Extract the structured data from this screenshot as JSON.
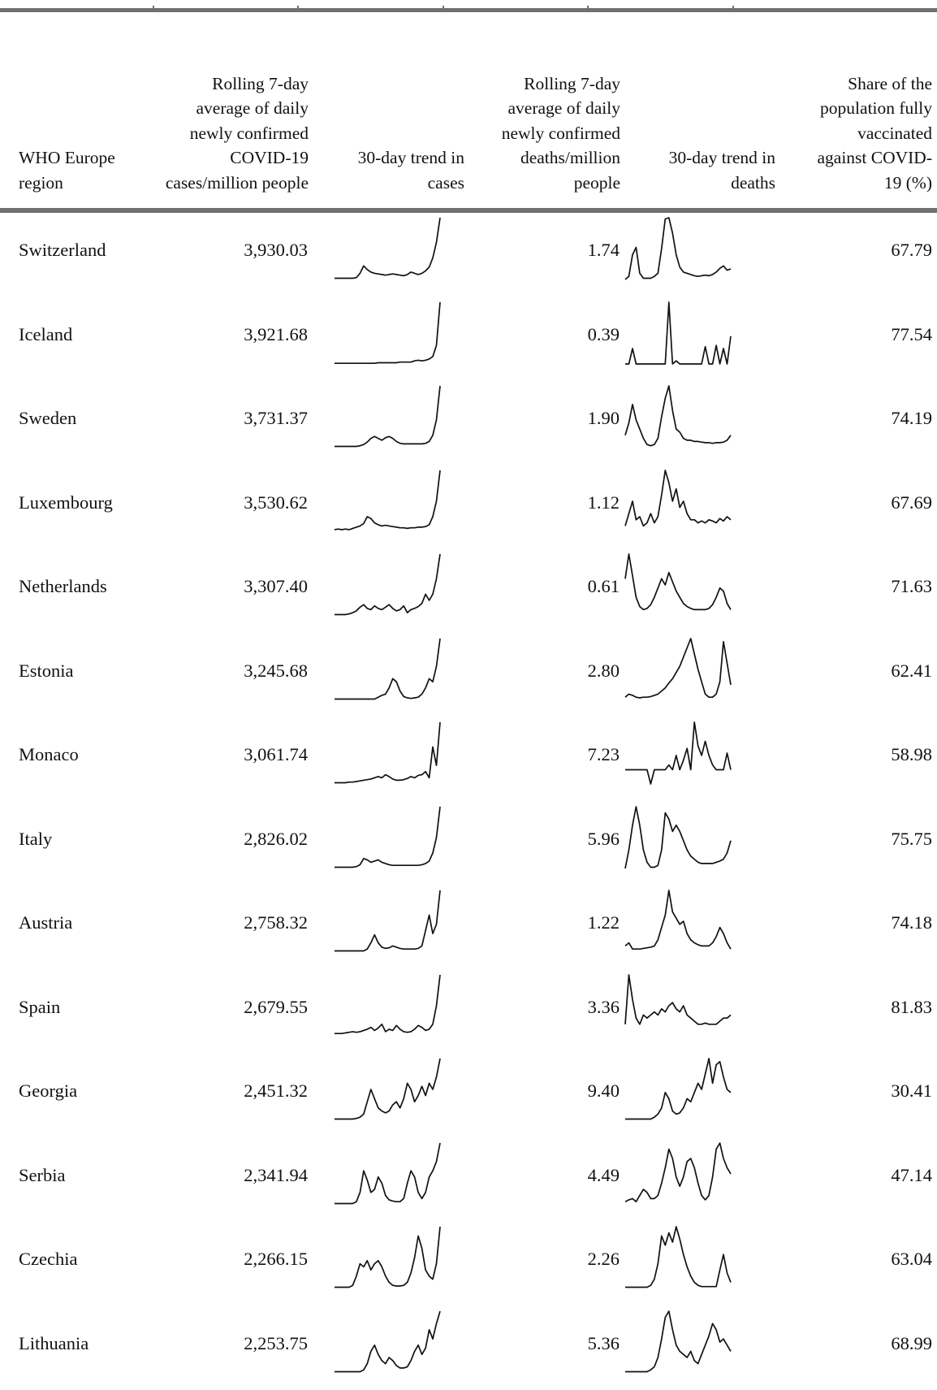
{
  "table": {
    "headers": {
      "region": "WHO Europe region",
      "cases_avg": "Rolling 7-day average of daily newly confirmed COVID-19 cases/million people",
      "cases_trend": "30-day trend in cases",
      "deaths_avg": "Rolling 7-day average of daily newly confirmed deaths/million people",
      "deaths_trend": "30-day trend in deaths",
      "vaccinated": "Share of the population fully vaccinated against COVID-19 (%)"
    },
    "rows": [
      {
        "country": "Switzerland",
        "cases": "3,930.03",
        "deaths": "1.74",
        "vaccinated": "67.79",
        "case_trend": [
          0.02,
          0.02,
          0.02,
          0.02,
          0.02,
          0.02,
          0.03,
          0.1,
          0.22,
          0.16,
          0.12,
          0.1,
          0.09,
          0.08,
          0.07,
          0.08,
          0.09,
          0.08,
          0.07,
          0.06,
          0.08,
          0.12,
          0.1,
          0.08,
          0.1,
          0.14,
          0.2,
          0.35,
          0.6,
          1.0
        ],
        "death_trend": [
          0.0,
          0.05,
          0.4,
          0.52,
          0.1,
          0.02,
          0.02,
          0.02,
          0.05,
          0.1,
          0.5,
          0.98,
          1.0,
          0.75,
          0.4,
          0.2,
          0.12,
          0.1,
          0.08,
          0.06,
          0.05,
          0.06,
          0.07,
          0.06,
          0.08,
          0.12,
          0.18,
          0.22,
          0.15,
          0.17
        ]
      },
      {
        "country": "Iceland",
        "cases": "3,921.68",
        "deaths": "0.39",
        "vaccinated": "77.54",
        "case_trend": [
          0.01,
          0.01,
          0.01,
          0.01,
          0.01,
          0.01,
          0.01,
          0.01,
          0.01,
          0.01,
          0.01,
          0.01,
          0.02,
          0.02,
          0.02,
          0.02,
          0.02,
          0.02,
          0.03,
          0.03,
          0.03,
          0.03,
          0.05,
          0.06,
          0.05,
          0.06,
          0.08,
          0.12,
          0.3,
          1.0
        ],
        "death_trend": [
          0.0,
          0.0,
          0.25,
          0.0,
          0.0,
          0.0,
          0.0,
          0.0,
          0.0,
          0.0,
          0.0,
          0.0,
          1.0,
          0.0,
          0.05,
          0.0,
          0.0,
          0.0,
          0.0,
          0.0,
          0.0,
          0.0,
          0.28,
          0.0,
          0.0,
          0.3,
          0.0,
          0.25,
          0.0,
          0.45
        ]
      },
      {
        "country": "Sweden",
        "cases": "3,731.37",
        "deaths": "1.90",
        "vaccinated": "74.19",
        "case_trend": [
          0.02,
          0.02,
          0.02,
          0.02,
          0.02,
          0.02,
          0.02,
          0.03,
          0.05,
          0.09,
          0.15,
          0.18,
          0.15,
          0.12,
          0.16,
          0.18,
          0.15,
          0.1,
          0.07,
          0.06,
          0.06,
          0.06,
          0.06,
          0.06,
          0.06,
          0.07,
          0.1,
          0.2,
          0.45,
          1.0
        ],
        "death_trend": [
          0.2,
          0.4,
          0.7,
          0.45,
          0.3,
          0.15,
          0.05,
          0.03,
          0.05,
          0.15,
          0.5,
          0.8,
          1.0,
          0.6,
          0.3,
          0.25,
          0.15,
          0.12,
          0.12,
          0.1,
          0.1,
          0.09,
          0.08,
          0.08,
          0.07,
          0.08,
          0.08,
          0.09,
          0.12,
          0.2
        ]
      },
      {
        "country": "Luxembourg",
        "cases": "3,530.62",
        "deaths": "1.12",
        "vaccinated": "67.69",
        "case_trend": [
          0.04,
          0.05,
          0.04,
          0.05,
          0.04,
          0.06,
          0.08,
          0.1,
          0.14,
          0.25,
          0.22,
          0.15,
          0.12,
          0.1,
          0.11,
          0.1,
          0.09,
          0.08,
          0.07,
          0.07,
          0.06,
          0.07,
          0.07,
          0.08,
          0.08,
          0.09,
          0.12,
          0.25,
          0.5,
          1.0
        ],
        "death_trend": [
          0.1,
          0.3,
          0.5,
          0.2,
          0.25,
          0.1,
          0.15,
          0.3,
          0.15,
          0.25,
          0.6,
          1.0,
          0.8,
          0.5,
          0.7,
          0.4,
          0.5,
          0.3,
          0.2,
          0.2,
          0.15,
          0.18,
          0.15,
          0.2,
          0.18,
          0.15,
          0.22,
          0.18,
          0.25,
          0.2
        ]
      },
      {
        "country": "Netherlands",
        "cases": "3,307.40",
        "deaths": "0.61",
        "vaccinated": "71.63",
        "case_trend": [
          0.02,
          0.02,
          0.02,
          0.02,
          0.03,
          0.05,
          0.08,
          0.14,
          0.18,
          0.12,
          0.1,
          0.16,
          0.12,
          0.1,
          0.14,
          0.18,
          0.12,
          0.08,
          0.1,
          0.16,
          0.05,
          0.1,
          0.12,
          0.15,
          0.2,
          0.35,
          0.25,
          0.35,
          0.6,
          1.0
        ],
        "death_trend": [
          0.6,
          1.0,
          0.65,
          0.3,
          0.15,
          0.1,
          0.12,
          0.18,
          0.3,
          0.45,
          0.6,
          0.5,
          0.7,
          0.55,
          0.4,
          0.3,
          0.2,
          0.15,
          0.12,
          0.1,
          0.1,
          0.1,
          0.1,
          0.12,
          0.18,
          0.3,
          0.45,
          0.4,
          0.2,
          0.1
        ]
      },
      {
        "country": "Estonia",
        "cases": "3,245.68",
        "deaths": "2.80",
        "vaccinated": "62.41",
        "case_trend": [
          0.02,
          0.02,
          0.02,
          0.02,
          0.02,
          0.02,
          0.02,
          0.02,
          0.02,
          0.02,
          0.02,
          0.02,
          0.05,
          0.08,
          0.1,
          0.2,
          0.35,
          0.3,
          0.15,
          0.06,
          0.04,
          0.03,
          0.04,
          0.05,
          0.1,
          0.2,
          0.35,
          0.3,
          0.55,
          1.0
        ],
        "death_trend": [
          0.05,
          0.1,
          0.08,
          0.05,
          0.04,
          0.05,
          0.05,
          0.06,
          0.08,
          0.1,
          0.15,
          0.2,
          0.28,
          0.35,
          0.45,
          0.55,
          0.7,
          0.85,
          1.0,
          0.75,
          0.5,
          0.3,
          0.1,
          0.05,
          0.05,
          0.1,
          0.3,
          0.95,
          0.6,
          0.25
        ]
      },
      {
        "country": "Monaco",
        "cases": "3,061.74",
        "deaths": "7.23",
        "vaccinated": "58.98",
        "case_trend": [
          0.02,
          0.02,
          0.02,
          0.02,
          0.03,
          0.03,
          0.04,
          0.05,
          0.06,
          0.07,
          0.08,
          0.1,
          0.12,
          0.1,
          0.15,
          0.12,
          0.08,
          0.06,
          0.06,
          0.07,
          0.09,
          0.12,
          0.1,
          0.14,
          0.15,
          0.2,
          0.1,
          0.6,
          0.3,
          1.0
        ],
        "death_trend": [
          0.0,
          0.0,
          0.0,
          0.0,
          0.0,
          0.0,
          0.0,
          -0.3,
          0.0,
          0.0,
          0.0,
          0.0,
          0.1,
          0.0,
          0.3,
          0.0,
          0.2,
          0.45,
          0.0,
          1.0,
          0.5,
          0.3,
          0.6,
          0.3,
          0.1,
          0.0,
          0.0,
          0.0,
          0.35,
          0.0
        ]
      },
      {
        "country": "Italy",
        "cases": "2,826.02",
        "deaths": "5.96",
        "vaccinated": "75.75",
        "case_trend": [
          0.02,
          0.02,
          0.02,
          0.02,
          0.02,
          0.02,
          0.03,
          0.06,
          0.16,
          0.14,
          0.1,
          0.12,
          0.14,
          0.1,
          0.08,
          0.06,
          0.05,
          0.05,
          0.05,
          0.05,
          0.05,
          0.05,
          0.05,
          0.05,
          0.06,
          0.08,
          0.12,
          0.25,
          0.5,
          1.0
        ],
        "death_trend": [
          0.0,
          0.3,
          0.7,
          1.0,
          0.7,
          0.3,
          0.1,
          0.02,
          0.02,
          0.05,
          0.3,
          0.9,
          0.8,
          0.6,
          0.7,
          0.6,
          0.45,
          0.3,
          0.2,
          0.15,
          0.1,
          0.08,
          0.08,
          0.08,
          0.08,
          0.1,
          0.12,
          0.15,
          0.25,
          0.45
        ]
      },
      {
        "country": "Austria",
        "cases": "2,758.32",
        "deaths": "1.22",
        "vaccinated": "74.18",
        "case_trend": [
          0.02,
          0.02,
          0.02,
          0.02,
          0.02,
          0.02,
          0.02,
          0.02,
          0.02,
          0.05,
          0.15,
          0.28,
          0.15,
          0.08,
          0.06,
          0.07,
          0.1,
          0.08,
          0.06,
          0.05,
          0.05,
          0.05,
          0.05,
          0.06,
          0.1,
          0.35,
          0.6,
          0.3,
          0.45,
          1.0
        ],
        "death_trend": [
          0.1,
          0.15,
          0.05,
          0.05,
          0.05,
          0.06,
          0.07,
          0.08,
          0.1,
          0.2,
          0.4,
          0.6,
          1.0,
          0.65,
          0.55,
          0.45,
          0.5,
          0.3,
          0.2,
          0.15,
          0.12,
          0.1,
          0.1,
          0.1,
          0.15,
          0.25,
          0.4,
          0.3,
          0.15,
          0.05
        ]
      },
      {
        "country": "Spain",
        "cases": "2,679.55",
        "deaths": "3.36",
        "vaccinated": "81.83",
        "case_trend": [
          0.05,
          0.05,
          0.05,
          0.06,
          0.07,
          0.08,
          0.07,
          0.08,
          0.1,
          0.12,
          0.15,
          0.1,
          0.14,
          0.2,
          0.08,
          0.12,
          0.1,
          0.18,
          0.12,
          0.08,
          0.07,
          0.08,
          0.12,
          0.18,
          0.15,
          0.1,
          0.12,
          0.2,
          0.5,
          1.0
        ],
        "death_trend": [
          0.2,
          1.0,
          0.6,
          0.3,
          0.2,
          0.35,
          0.3,
          0.35,
          0.4,
          0.35,
          0.45,
          0.4,
          0.5,
          0.55,
          0.45,
          0.4,
          0.5,
          0.35,
          0.3,
          0.25,
          0.2,
          0.2,
          0.22,
          0.2,
          0.2,
          0.2,
          0.25,
          0.3,
          0.3,
          0.35
        ]
      },
      {
        "country": "Georgia",
        "cases": "2,451.32",
        "deaths": "9.40",
        "vaccinated": "30.41",
        "case_trend": [
          0.02,
          0.02,
          0.02,
          0.02,
          0.02,
          0.02,
          0.03,
          0.05,
          0.1,
          0.3,
          0.5,
          0.35,
          0.2,
          0.15,
          0.12,
          0.15,
          0.25,
          0.3,
          0.2,
          0.35,
          0.6,
          0.5,
          0.3,
          0.4,
          0.55,
          0.4,
          0.6,
          0.5,
          0.7,
          1.0
        ],
        "death_trend": [
          0.02,
          0.02,
          0.02,
          0.02,
          0.02,
          0.02,
          0.02,
          0.02,
          0.05,
          0.1,
          0.2,
          0.45,
          0.35,
          0.15,
          0.1,
          0.12,
          0.2,
          0.35,
          0.3,
          0.45,
          0.6,
          0.5,
          0.75,
          1.0,
          0.6,
          0.9,
          0.95,
          0.7,
          0.5,
          0.45
        ]
      },
      {
        "country": "Serbia",
        "cases": "2,341.94",
        "deaths": "4.49",
        "vaccinated": "47.14",
        "case_trend": [
          0.02,
          0.02,
          0.02,
          0.02,
          0.02,
          0.02,
          0.05,
          0.2,
          0.55,
          0.4,
          0.2,
          0.25,
          0.45,
          0.35,
          0.15,
          0.08,
          0.06,
          0.05,
          0.05,
          0.1,
          0.35,
          0.55,
          0.45,
          0.2,
          0.1,
          0.2,
          0.45,
          0.55,
          0.7,
          1.0
        ],
        "death_trend": [
          0.05,
          0.08,
          0.1,
          0.05,
          0.15,
          0.25,
          0.2,
          0.1,
          0.1,
          0.15,
          0.35,
          0.6,
          0.9,
          0.75,
          0.45,
          0.3,
          0.45,
          0.7,
          0.75,
          0.6,
          0.35,
          0.15,
          0.08,
          0.15,
          0.45,
          0.9,
          1.0,
          0.75,
          0.6,
          0.5
        ]
      },
      {
        "country": "Czechia",
        "cases": "2,266.15",
        "deaths": "2.26",
        "vaccinated": "63.04",
        "case_trend": [
          0.02,
          0.02,
          0.02,
          0.02,
          0.02,
          0.05,
          0.2,
          0.4,
          0.35,
          0.45,
          0.3,
          0.4,
          0.45,
          0.35,
          0.2,
          0.1,
          0.05,
          0.04,
          0.04,
          0.05,
          0.1,
          0.25,
          0.5,
          0.85,
          0.65,
          0.3,
          0.2,
          0.15,
          0.4,
          1.0
        ],
        "death_trend": [
          0.02,
          0.02,
          0.02,
          0.02,
          0.02,
          0.02,
          0.02,
          0.05,
          0.15,
          0.4,
          0.85,
          0.7,
          0.9,
          0.75,
          1.0,
          0.8,
          0.55,
          0.35,
          0.2,
          0.1,
          0.05,
          0.03,
          0.03,
          0.03,
          0.03,
          0.03,
          0.3,
          0.55,
          0.25,
          0.1
        ]
      },
      {
        "country": "Lithuania",
        "cases": "2,253.75",
        "deaths": "5.36",
        "vaccinated": "68.99",
        "case_trend": [
          0.02,
          0.02,
          0.02,
          0.02,
          0.02,
          0.02,
          0.02,
          0.02,
          0.05,
          0.15,
          0.35,
          0.45,
          0.3,
          0.2,
          0.15,
          0.25,
          0.2,
          0.12,
          0.08,
          0.08,
          0.1,
          0.2,
          0.35,
          0.45,
          0.3,
          0.4,
          0.7,
          0.55,
          0.8,
          1.0
        ],
        "death_trend": [
          0.02,
          0.02,
          0.02,
          0.02,
          0.02,
          0.02,
          0.02,
          0.05,
          0.1,
          0.25,
          0.55,
          0.9,
          1.0,
          0.7,
          0.45,
          0.35,
          0.3,
          0.25,
          0.35,
          0.2,
          0.15,
          0.3,
          0.45,
          0.6,
          0.8,
          0.7,
          0.5,
          0.55,
          0.45,
          0.35
        ]
      }
    ]
  }
}
